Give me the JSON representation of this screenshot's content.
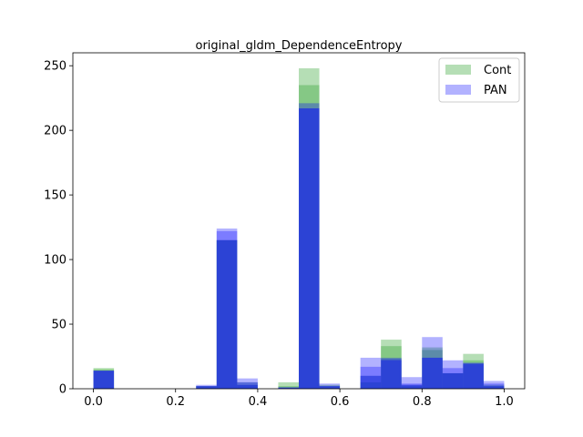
{
  "chart_data": {
    "type": "bar",
    "title": "original_gldm_DependenceEntropy",
    "xlabel": "",
    "ylabel": "",
    "xlim": [
      -0.05,
      1.05
    ],
    "ylim": [
      0,
      260
    ],
    "xticks": [
      0.0,
      0.2,
      0.4,
      0.6,
      0.8,
      1.0
    ],
    "xtick_labels": [
      "0.0",
      "0.2",
      "0.4",
      "0.6",
      "0.8",
      "1.0"
    ],
    "yticks": [
      0,
      50,
      100,
      150,
      200,
      250
    ],
    "ytick_labels": [
      "0",
      "50",
      "100",
      "150",
      "200",
      "250"
    ],
    "bin_width": 0.05,
    "bin_starts": [
      0.0,
      0.05,
      0.1,
      0.15,
      0.2,
      0.25,
      0.3,
      0.35,
      0.4,
      0.45,
      0.5,
      0.55,
      0.6,
      0.65,
      0.7,
      0.75,
      0.8,
      0.85,
      0.9,
      0.95
    ],
    "legend_position": "top-right",
    "series": [
      {
        "name": "Cont",
        "color": "#2ca02c",
        "alpha": 0.35,
        "layer": "bottom",
        "values": [
          16,
          0,
          0,
          0,
          0,
          2,
          115,
          5,
          0,
          5,
          248,
          3,
          0,
          5,
          38,
          3,
          32,
          12,
          27,
          3
        ]
      },
      {
        "name": "Cont",
        "color": "#2ca02c",
        "alpha": 0.35,
        "layer": "bottom",
        "values": [
          15,
          0,
          0,
          0,
          0,
          2,
          115,
          3,
          0,
          2,
          235,
          2,
          0,
          10,
          33,
          2,
          30,
          12,
          22,
          2
        ]
      },
      {
        "name": "PAN",
        "color": "#0000ff",
        "alpha": 0.3,
        "layer": "top",
        "values": [
          14,
          0,
          0,
          0,
          0,
          2,
          124,
          8,
          0,
          1,
          221,
          4,
          0,
          24,
          23,
          9,
          40,
          22,
          20,
          6
        ]
      },
      {
        "name": "PAN",
        "color": "#0000ff",
        "alpha": 0.3,
        "layer": "top",
        "values": [
          14,
          0,
          0,
          0,
          0,
          3,
          122,
          5,
          0,
          1,
          217,
          2,
          0,
          17,
          24,
          4,
          24,
          16,
          19,
          4
        ]
      },
      {
        "name": "PAN",
        "color": "#0000ff",
        "alpha": 0.3,
        "layer": "top",
        "values": [
          14,
          0,
          0,
          0,
          0,
          2,
          115,
          3,
          0,
          1,
          217,
          2,
          0,
          10,
          22,
          3,
          24,
          12,
          20,
          2
        ]
      }
    ],
    "legend": [
      {
        "label": "Cont",
        "color": "#2ca02c",
        "alpha": 0.35
      },
      {
        "label": "PAN",
        "color": "#0000ff",
        "alpha": 0.3
      }
    ]
  }
}
